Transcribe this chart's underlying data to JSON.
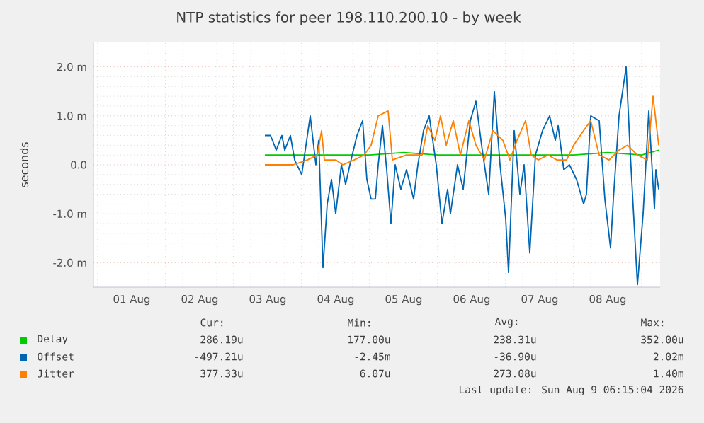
{
  "chart_data": {
    "type": "line",
    "title": "NTP statistics for peer 198.110.200.10 - by week",
    "ylabel": "seconds",
    "xlim": [
      "2026-07-31T22:30",
      "2026-08-09T06:30"
    ],
    "xticks": [
      {
        "value": "2026-08-01T00:00",
        "label": null
      },
      {
        "value": "2026-08-02T00:00",
        "label": null
      },
      {
        "value": "2026-08-03T00:00",
        "label": null
      },
      {
        "value": "2026-08-04T00:00",
        "label": null
      },
      {
        "value": "2026-08-05T00:00",
        "label": null
      },
      {
        "value": "2026-08-06T00:00",
        "label": null
      },
      {
        "value": "2026-08-07T00:00",
        "label": null
      },
      {
        "value": "2026-08-08T00:00",
        "label": null
      },
      {
        "value": "2026-08-09T00:00",
        "label": null
      },
      {
        "value": "2026-08-01T12:00",
        "label": "01 Aug"
      },
      {
        "value": "2026-08-02T12:00",
        "label": "02 Aug"
      },
      {
        "value": "2026-08-03T12:00",
        "label": "03 Aug"
      },
      {
        "value": "2026-08-04T12:00",
        "label": "04 Aug"
      },
      {
        "value": "2026-08-05T12:00",
        "label": "05 Aug"
      },
      {
        "value": "2026-08-06T12:00",
        "label": "06 Aug"
      },
      {
        "value": "2026-08-07T12:00",
        "label": "07 Aug"
      },
      {
        "value": "2026-08-08T12:00",
        "label": "08 Aug"
      }
    ],
    "ylim": [
      -2.5,
      2.5
    ],
    "yticks": [
      {
        "value": -2,
        "label": "-2.0 m"
      },
      {
        "value": -1,
        "label": "-1.0 m"
      },
      {
        "value": 0,
        "label": "0.0"
      },
      {
        "value": 1,
        "label": "1.0 m"
      },
      {
        "value": 2,
        "label": "2.0 m"
      }
    ],
    "grid": true,
    "legend": "bottom",
    "series": [
      {
        "name": "Delay",
        "color": "#00cc00",
        "x": [
          "2026-08-03T11:00",
          "2026-08-03T20:00",
          "2026-08-04T00:00",
          "2026-08-04T12:00",
          "2026-08-05T00:00",
          "2026-08-05T12:00",
          "2026-08-06T00:00",
          "2026-08-06T12:00",
          "2026-08-07T00:00",
          "2026-08-07T12:00",
          "2026-08-08T00:00",
          "2026-08-08T12:00",
          "2026-08-09T00:00",
          "2026-08-09T06:00"
        ],
        "values": [
          0.2,
          0.2,
          0.2,
          0.2,
          0.2,
          0.25,
          0.2,
          0.2,
          0.2,
          0.2,
          0.2,
          0.25,
          0.2,
          0.3
        ]
      },
      {
        "name": "Offset",
        "color": "#0066b3",
        "x": [
          "2026-08-03T11:00",
          "2026-08-03T13:00",
          "2026-08-03T15:00",
          "2026-08-03T17:00",
          "2026-08-03T18:00",
          "2026-08-03T20:00",
          "2026-08-03T21:30",
          "2026-08-04T00:00",
          "2026-08-04T01:30",
          "2026-08-04T03:00",
          "2026-08-04T05:00",
          "2026-08-04T06:00",
          "2026-08-04T07:30",
          "2026-08-04T09:00",
          "2026-08-04T10:30",
          "2026-08-04T12:00",
          "2026-08-04T14:00",
          "2026-08-04T15:30",
          "2026-08-04T17:00",
          "2026-08-04T19:30",
          "2026-08-04T21:30",
          "2026-08-04T23:00",
          "2026-08-05T00:30",
          "2026-08-05T02:00",
          "2026-08-05T03:00",
          "2026-08-05T04:30",
          "2026-08-05T06:00",
          "2026-08-05T07:30",
          "2026-08-05T09:00",
          "2026-08-05T11:00",
          "2026-08-05T13:00",
          "2026-08-05T15:30",
          "2026-08-05T17:00",
          "2026-08-05T19:00",
          "2026-08-05T21:00",
          "2026-08-05T23:30",
          "2026-08-06T01:30",
          "2026-08-06T03:30",
          "2026-08-06T04:30",
          "2026-08-06T07:00",
          "2026-08-06T09:00",
          "2026-08-06T11:30",
          "2026-08-06T13:30",
          "2026-08-06T15:30",
          "2026-08-06T18:00",
          "2026-08-06T20:00",
          "2026-08-06T22:00",
          "2026-08-07T00:00",
          "2026-08-07T01:00",
          "2026-08-07T03:00",
          "2026-08-07T05:00",
          "2026-08-07T06:30",
          "2026-08-07T08:30",
          "2026-08-07T10:30",
          "2026-08-07T13:00",
          "2026-08-07T15:30",
          "2026-08-07T17:30",
          "2026-08-07T18:30",
          "2026-08-07T20:30",
          "2026-08-07T22:30",
          "2026-08-08T01:00",
          "2026-08-08T03:30",
          "2026-08-08T04:30",
          "2026-08-08T06:00",
          "2026-08-08T09:00",
          "2026-08-08T11:00",
          "2026-08-08T13:00",
          "2026-08-08T14:00",
          "2026-08-08T16:00",
          "2026-08-08T18:30",
          "2026-08-08T20:00",
          "2026-08-08T22:30",
          "2026-08-09T00:30",
          "2026-08-09T02:30",
          "2026-08-09T04:30",
          "2026-08-09T05:00",
          "2026-08-09T06:00"
        ],
        "values": [
          0.6,
          0.6,
          0.3,
          0.6,
          0.3,
          0.6,
          0.1,
          -0.2,
          0.4,
          1.0,
          0,
          0.5,
          -2.1,
          -0.8,
          -0.3,
          -1.0,
          0,
          -0.4,
          0,
          0.6,
          0.9,
          -0.3,
          -0.7,
          -0.7,
          0,
          0.8,
          -0.1,
          -1.2,
          0,
          -0.5,
          -0.1,
          -0.7,
          0,
          0.7,
          1.0,
          0,
          -1.2,
          -0.5,
          -1.0,
          0,
          -0.5,
          0.9,
          1.3,
          0.4,
          -0.6,
          1.5,
          0,
          -1.1,
          -2.2,
          0.7,
          -0.6,
          0,
          -1.8,
          0.2,
          0.7,
          1.0,
          0.5,
          0.8,
          -0.1,
          0,
          -0.3,
          -0.8,
          -0.6,
          1.0,
          0.9,
          -0.7,
          -1.7,
          -0.7,
          1.0,
          2.0,
          0.2,
          -2.45,
          -1.0,
          1.1,
          -0.9,
          -0.1,
          -0.5
        ]
      },
      {
        "name": "Jitter",
        "color": "#ff8000",
        "x": [
          "2026-08-03T11:00",
          "2026-08-03T21:00",
          "2026-08-04T02:00",
          "2026-08-04T05:30",
          "2026-08-04T07:00",
          "2026-08-04T08:00",
          "2026-08-04T12:00",
          "2026-08-04T14:30",
          "2026-08-04T18:30",
          "2026-08-04T22:00",
          "2026-08-05T00:30",
          "2026-08-05T03:00",
          "2026-08-05T06:30",
          "2026-08-05T08:00",
          "2026-08-05T13:00",
          "2026-08-05T16:00",
          "2026-08-05T18:30",
          "2026-08-05T20:30",
          "2026-08-05T23:00",
          "2026-08-06T01:00",
          "2026-08-06T03:00",
          "2026-08-06T05:30",
          "2026-08-06T08:00",
          "2026-08-06T11:00",
          "2026-08-06T13:30",
          "2026-08-06T16:30",
          "2026-08-06T19:30",
          "2026-08-06T23:00",
          "2026-08-07T01:30",
          "2026-08-07T04:00",
          "2026-08-07T07:00",
          "2026-08-07T09:00",
          "2026-08-07T11:30",
          "2026-08-07T15:00",
          "2026-08-07T18:00",
          "2026-08-07T21:30",
          "2026-08-08T00:00",
          "2026-08-08T03:30",
          "2026-08-08T06:00",
          "2026-08-08T09:00",
          "2026-08-08T12:30",
          "2026-08-08T16:00",
          "2026-08-08T19:00",
          "2026-08-08T22:30",
          "2026-08-09T02:00",
          "2026-08-09T04:00",
          "2026-08-09T06:00"
        ],
        "values": [
          0,
          0,
          0.1,
          0.2,
          0.7,
          0.1,
          0.1,
          0,
          0.1,
          0.2,
          0.4,
          1.0,
          1.1,
          0.1,
          0.2,
          0.2,
          0.2,
          0.8,
          0.5,
          1.0,
          0.4,
          0.9,
          0.2,
          0.9,
          0.4,
          0.1,
          0.7,
          0.5,
          0.1,
          0.5,
          0.9,
          0.2,
          0.1,
          0.2,
          0.1,
          0.1,
          0.4,
          0.7,
          0.9,
          0.2,
          0.1,
          0.3,
          0.4,
          0.2,
          0.1,
          1.4,
          0.4
        ]
      }
    ],
    "annotations": [
      "Cur:",
      "Min:",
      "Avg:",
      "Max:",
      "286.19u",
      "177.00u",
      "238.31u",
      "352.00u",
      "-497.21u",
      "-2.45m",
      "-36.90u",
      "2.02m",
      "377.33u",
      "6.07u",
      "273.08u",
      "1.40m",
      "Last update: Sun Aug  9 06:15:04 2026"
    ]
  }
}
